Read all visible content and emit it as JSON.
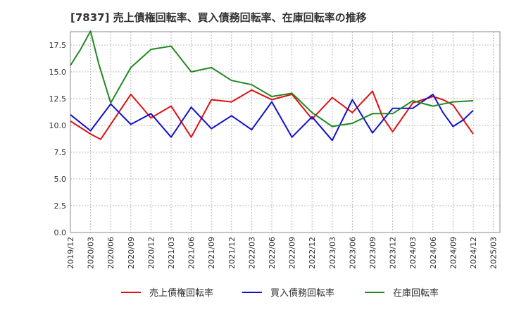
{
  "chart_data": {
    "type": "line",
    "title": "[7837]  売上債権回転率、買入債務回転率、在庫回転率の推移",
    "xlabel": "",
    "ylabel": "",
    "ylim": [
      0,
      18.75
    ],
    "yticks": [
      0.0,
      2.5,
      5.0,
      7.5,
      10.0,
      12.5,
      15.0,
      17.5
    ],
    "ytick_labels": [
      "0.0",
      "2.5",
      "5.0",
      "7.5",
      "10.0",
      "12.5",
      "15.0",
      "17.5"
    ],
    "xtick_labels": [
      "2019/12",
      "2020/03",
      "2020/06",
      "2020/09",
      "2020/12",
      "2021/03",
      "2021/06",
      "2021/09",
      "2021/12",
      "2022/03",
      "2022/06",
      "2022/09",
      "2022/12",
      "2023/03",
      "2023/06",
      "2023/09",
      "2023/12",
      "2024/03",
      "2024/06",
      "2024/09",
      "2024/12",
      "2025/03"
    ],
    "grid": true,
    "legend_position": "bottom",
    "series": [
      {
        "name": "売上債権回転率",
        "color": "#dd1111",
        "x": [
          0,
          1,
          1.5,
          3,
          4,
          5,
          6,
          7,
          8,
          9,
          10,
          11,
          12,
          13,
          14,
          15,
          15.5,
          16,
          17,
          18,
          18.5,
          19,
          20
        ],
        "values": [
          10.4,
          9.2,
          8.7,
          12.9,
          10.7,
          11.8,
          8.9,
          12.4,
          12.2,
          13.3,
          12.4,
          12.9,
          10.6,
          12.6,
          11.2,
          13.2,
          10.8,
          9.4,
          12.1,
          12.7,
          12.4,
          11.9,
          9.2
        ]
      },
      {
        "name": "買入債務回転率",
        "color": "#1111cc",
        "x": [
          0,
          1,
          2,
          3,
          4,
          5,
          6,
          7,
          8,
          9,
          10,
          11,
          12,
          13,
          14,
          15,
          16,
          17,
          18,
          18.5,
          19,
          19.5,
          20
        ],
        "values": [
          11.0,
          9.5,
          12.0,
          10.1,
          11.1,
          8.9,
          11.7,
          9.7,
          10.9,
          9.6,
          12.2,
          8.9,
          10.8,
          8.6,
          12.4,
          9.3,
          11.6,
          11.6,
          12.9,
          11.2,
          9.9,
          10.5,
          11.4
        ]
      },
      {
        "name": "在庫回転率",
        "color": "#228822",
        "x": [
          0,
          0.5,
          1,
          1.4,
          2,
          3,
          4,
          5,
          6,
          7,
          8,
          9,
          10,
          11,
          12,
          13,
          14,
          15,
          16,
          17,
          18,
          19,
          20
        ],
        "values": [
          15.6,
          17.1,
          18.8,
          15.8,
          12.1,
          15.4,
          17.1,
          17.4,
          15.0,
          15.4,
          14.2,
          13.8,
          12.7,
          13.0,
          11.2,
          9.9,
          10.2,
          11.1,
          11.1,
          12.3,
          11.8,
          12.2,
          12.3
        ]
      }
    ]
  }
}
